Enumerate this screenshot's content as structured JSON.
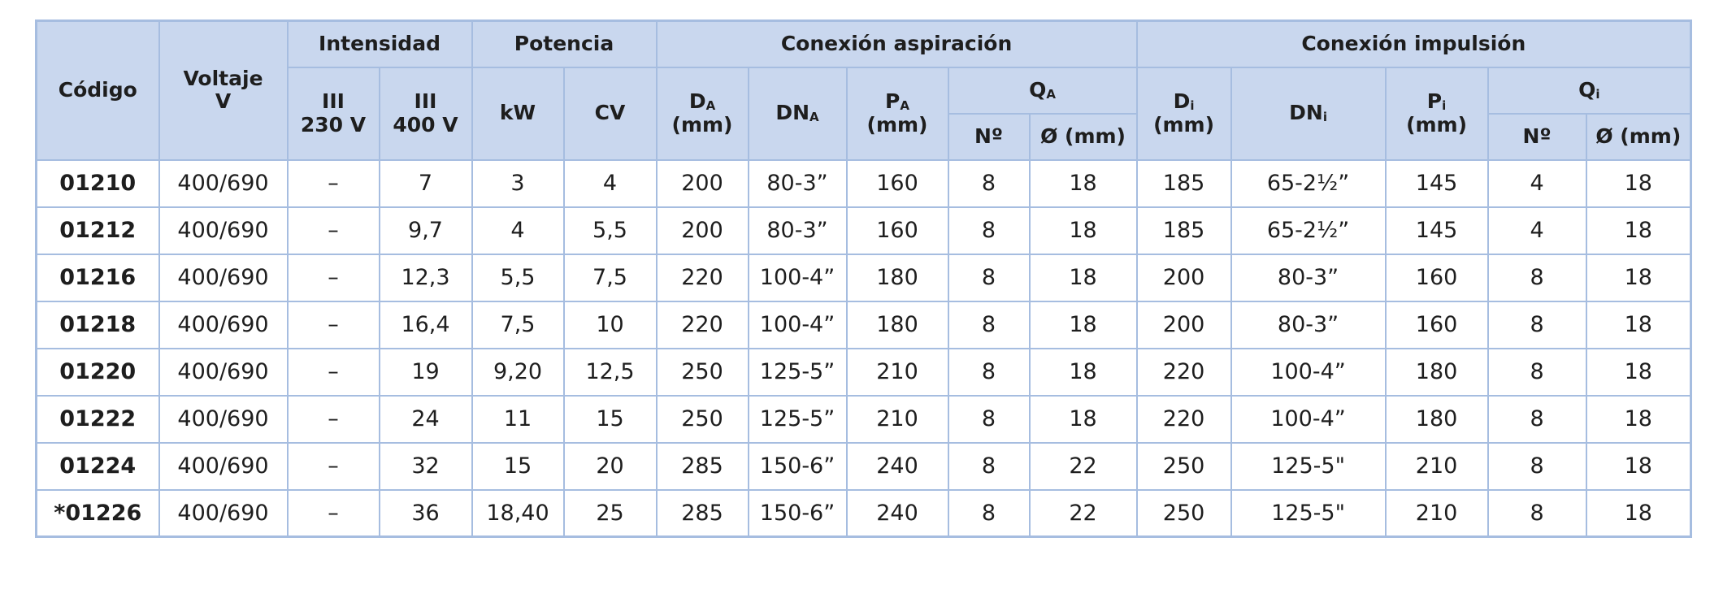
{
  "header": {
    "codigo": "Código",
    "voltaje": {
      "label": "Voltaje",
      "unit": "V"
    },
    "intensidad": {
      "label": "Intensidad",
      "columns": [
        {
          "label": "III",
          "unit": "230 V"
        },
        {
          "label": "III",
          "unit": "400 V"
        }
      ]
    },
    "potencia": {
      "label": "Potencia",
      "columns": [
        "kW",
        "CV"
      ]
    },
    "aspiracion": {
      "label": "Conexión aspiración",
      "d": {
        "symbol": "D",
        "sub": "A",
        "unit": "(mm)"
      },
      "dn": {
        "symbol": "DN",
        "sub": "A"
      },
      "p": {
        "symbol": "P",
        "sub": "A",
        "unit": "(mm)"
      },
      "q": {
        "symbol": "Q",
        "sub": "A",
        "columns": [
          "Nº",
          "Ø (mm)"
        ]
      }
    },
    "impulsion": {
      "label": "Conexión impulsión",
      "d": {
        "symbol": "D",
        "sub": "i",
        "unit": "(mm)"
      },
      "dn": {
        "symbol": "DN",
        "sub": "i"
      },
      "p": {
        "symbol": "P",
        "sub": "i",
        "unit": "(mm)"
      },
      "q": {
        "symbol": "Q",
        "sub": "i",
        "columns": [
          "Nº",
          "Ø (mm)"
        ]
      }
    }
  },
  "table": {
    "rows": [
      [
        "01210",
        "400/690",
        "–",
        "7",
        "3",
        "4",
        "200",
        "80-3”",
        "160",
        "8",
        "18",
        "185",
        "65-2½”",
        "145",
        "4",
        "18"
      ],
      [
        "01212",
        "400/690",
        "–",
        "9,7",
        "4",
        "5,5",
        "200",
        "80-3”",
        "160",
        "8",
        "18",
        "185",
        "65-2½”",
        "145",
        "4",
        "18"
      ],
      [
        "01216",
        "400/690",
        "–",
        "12,3",
        "5,5",
        "7,5",
        "220",
        "100-4”",
        "180",
        "8",
        "18",
        "200",
        "80-3”",
        "160",
        "8",
        "18"
      ],
      [
        "01218",
        "400/690",
        "–",
        "16,4",
        "7,5",
        "10",
        "220",
        "100-4”",
        "180",
        "8",
        "18",
        "200",
        "80-3”",
        "160",
        "8",
        "18"
      ],
      [
        "01220",
        "400/690",
        "–",
        "19",
        "9,20",
        "12,5",
        "250",
        "125-5”",
        "210",
        "8",
        "18",
        "220",
        "100-4”",
        "180",
        "8",
        "18"
      ],
      [
        "01222",
        "400/690",
        "–",
        "24",
        "11",
        "15",
        "250",
        "125-5”",
        "210",
        "8",
        "18",
        "220",
        "100-4”",
        "180",
        "8",
        "18"
      ],
      [
        "01224",
        "400/690",
        "–",
        "32",
        "15",
        "20",
        "285",
        "150-6”",
        "240",
        "8",
        "22",
        "250",
        "125-5\"",
        "210",
        "8",
        "18"
      ],
      [
        "*01226",
        "400/690",
        "–",
        "36",
        "18,40",
        "25",
        "285",
        "150-6”",
        "240",
        "8",
        "22",
        "250",
        "125-5\"",
        "210",
        "8",
        "18"
      ]
    ]
  }
}
